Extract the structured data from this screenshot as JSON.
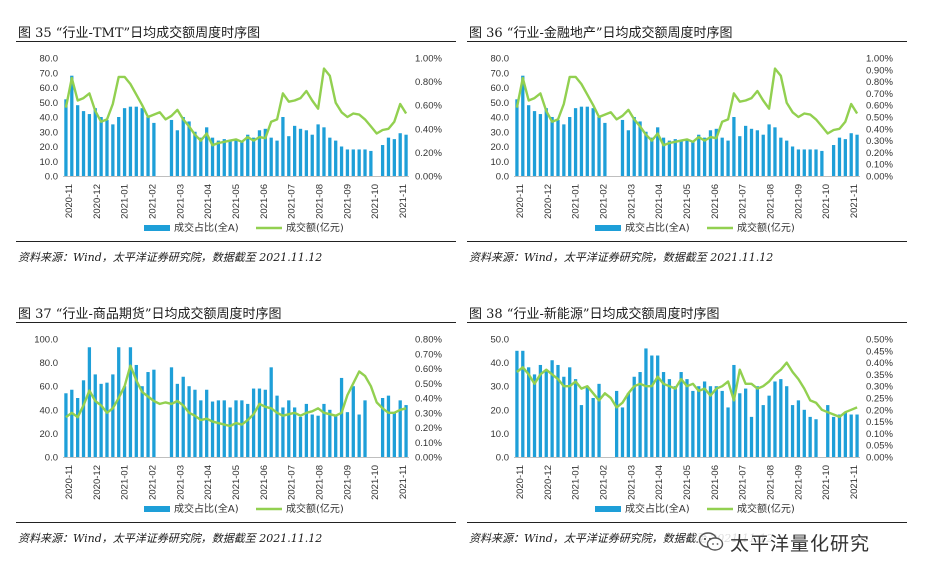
{
  "colors": {
    "bar": "#1e9fd8",
    "line": "#92d050",
    "text": "#333333"
  },
  "watermark": {
    "text": "太平洋量化研究",
    "icon": "wechat-icon"
  },
  "panels": [
    {
      "title": "图  35 “行业-TMT”日均成交额周度时序图",
      "source": "资料来源：Wind，太平洋证券研究院，数据截至 2021.11.12",
      "chart_data": {
        "type": "bar+line",
        "left_axis": {
          "min": 0,
          "max": 80,
          "ticks": [
            "0.0",
            "10.0",
            "20.0",
            "30.0",
            "40.0",
            "50.0",
            "60.0",
            "70.0",
            "80.0"
          ]
        },
        "right_axis": {
          "min": 0,
          "max": 1.0,
          "ticks": [
            "0.00%",
            "0.20%",
            "0.40%",
            "0.60%",
            "0.80%",
            "1.00%"
          ]
        },
        "x_labels": [
          "2020-11",
          "2020-12",
          "2021-01",
          "2021-02",
          "2021-03",
          "2021-04",
          "2021-05",
          "2021-06",
          "2021-07",
          "2021-08",
          "2021-09",
          "2021-10",
          "2021-11"
        ],
        "legend": [
          "成交占比(全A)",
          "成交额(亿元)"
        ],
        "series": [
          {
            "name": "成交占比(全A)",
            "kind": "bar",
            "axis": "left",
            "values": [
              52,
              68,
              48,
              44,
              42,
              46,
              40,
              38,
              35,
              40,
              46,
              47,
              47,
              46,
              40,
              36,
              null,
              null,
              38,
              31,
              40,
              37,
              30,
              26,
              33,
              26,
              24,
              25,
              24,
              25,
              23,
              28,
              26,
              31,
              32,
              26,
              24,
              40,
              27,
              34,
              32,
              31,
              28,
              35,
              33,
              26,
              24,
              20,
              18,
              18,
              18,
              18,
              17,
              null,
              21,
              26,
              25,
              29,
              28
            ]
          },
          {
            "name": "成交额(亿元)",
            "kind": "line",
            "axis": "right",
            "values": [
              0.58,
              0.83,
              0.64,
              0.66,
              0.7,
              0.55,
              0.46,
              0.48,
              0.61,
              0.84,
              0.84,
              0.78,
              0.69,
              0.6,
              0.5,
              0.52,
              0.54,
              0.48,
              0.51,
              0.56,
              0.48,
              0.42,
              0.35,
              0.3,
              0.36,
              0.26,
              0.28,
              0.29,
              0.3,
              0.31,
              0.29,
              0.33,
              0.3,
              0.33,
              0.32,
              0.46,
              0.48,
              0.7,
              0.63,
              0.64,
              0.66,
              0.72,
              0.64,
              0.57,
              0.91,
              0.85,
              0.62,
              0.54,
              0.5,
              0.53,
              0.52,
              0.48,
              0.42,
              0.36,
              0.39,
              0.4,
              0.46,
              0.61,
              0.53
            ]
          }
        ]
      }
    },
    {
      "title": "图  36 “行业-金融地产”日均成交额周度时序图",
      "source": "资料来源：Wind，太平洋证券研究院，数据截至 2021.11.12",
      "chart_data": {
        "type": "bar+line",
        "left_axis": {
          "min": 0,
          "max": 80,
          "ticks": [
            "0.0",
            "10.0",
            "20.0",
            "30.0",
            "40.0",
            "50.0",
            "60.0",
            "70.0",
            "80.0"
          ]
        },
        "right_axis": {
          "min": 0,
          "max": 1.0,
          "ticks": [
            "0.00%",
            "0.10%",
            "0.20%",
            "0.30%",
            "0.40%",
            "0.50%",
            "0.60%",
            "0.70%",
            "0.80%",
            "0.90%",
            "1.00%"
          ]
        },
        "x_labels": [
          "2020-11",
          "2020-12",
          "2021-01",
          "2021-02",
          "2021-03",
          "2021-04",
          "2021-05",
          "2021-06",
          "2021-07",
          "2021-08",
          "2021-09",
          "2021-10",
          "2021-11"
        ],
        "legend": [
          "成交占比(全A)",
          "成交额(亿元)"
        ],
        "series": [
          {
            "name": "成交占比(全A)",
            "kind": "bar",
            "axis": "left",
            "values": [
              52,
              68,
              48,
              44,
              42,
              46,
              40,
              38,
              35,
              40,
              46,
              47,
              47,
              46,
              40,
              36,
              null,
              null,
              38,
              31,
              40,
              37,
              30,
              26,
              33,
              26,
              24,
              25,
              24,
              25,
              23,
              28,
              26,
              31,
              32,
              26,
              24,
              40,
              27,
              34,
              32,
              31,
              28,
              35,
              33,
              26,
              24,
              20,
              18,
              18,
              18,
              18,
              17,
              null,
              21,
              26,
              25,
              29,
              28
            ]
          },
          {
            "name": "成交额(亿元)",
            "kind": "line",
            "axis": "right",
            "values": [
              0.58,
              0.83,
              0.64,
              0.66,
              0.7,
              0.55,
              0.46,
              0.48,
              0.61,
              0.84,
              0.84,
              0.78,
              0.69,
              0.6,
              0.5,
              0.52,
              0.54,
              0.48,
              0.51,
              0.56,
              0.48,
              0.42,
              0.35,
              0.3,
              0.36,
              0.26,
              0.28,
              0.29,
              0.3,
              0.31,
              0.29,
              0.33,
              0.3,
              0.33,
              0.32,
              0.46,
              0.48,
              0.7,
              0.63,
              0.64,
              0.66,
              0.72,
              0.64,
              0.57,
              0.91,
              0.85,
              0.62,
              0.54,
              0.5,
              0.53,
              0.52,
              0.48,
              0.42,
              0.36,
              0.39,
              0.4,
              0.46,
              0.61,
              0.53
            ]
          }
        ]
      }
    },
    {
      "title": "图  37 “行业-商品期货”日均成交额周度时序图",
      "source": "资料来源：Wind，太平洋证券研究院，数据截至 2021.11.12",
      "chart_data": {
        "type": "bar+line",
        "left_axis": {
          "min": 0,
          "max": 100,
          "ticks": [
            "0.0",
            "20.0",
            "40.0",
            "60.0",
            "80.0",
            "100.0"
          ]
        },
        "right_axis": {
          "min": 0,
          "max": 0.8,
          "ticks": [
            "0.00%",
            "0.10%",
            "0.20%",
            "0.30%",
            "0.40%",
            "0.50%",
            "0.60%",
            "0.70%",
            "0.80%"
          ]
        },
        "x_labels": [
          "2020-11",
          "2020-12",
          "2021-01",
          "2021-02",
          "2021-03",
          "2021-04",
          "2021-05",
          "2021-06",
          "2021-07",
          "2021-08",
          "2021-09",
          "2021-10",
          "2021-11"
        ],
        "legend": [
          "成交占比(全A)",
          "成交额(亿元)"
        ],
        "series": [
          {
            "name": "成交占比(全A)",
            "kind": "bar",
            "axis": "left",
            "values": [
              54,
              57,
              50,
              65,
              93,
              70,
              62,
              63,
              70,
              93,
              60,
              93,
              78,
              60,
              72,
              74,
              null,
              null,
              76,
              62,
              68,
              60,
              57,
              48,
              57,
              47,
              48,
              48,
              42,
              48,
              48,
              45,
              58,
              58,
              57,
              76,
              52,
              42,
              48,
              42,
              34,
              45,
              36,
              35,
              45,
              40,
              36,
              67,
              38,
              60,
              36,
              48,
              null,
              null,
              50,
              52,
              38,
              48,
              44
            ]
          },
          {
            "name": "成交额(亿元)",
            "kind": "line",
            "axis": "right",
            "values": [
              0.27,
              0.3,
              0.27,
              0.35,
              0.45,
              0.38,
              0.35,
              0.3,
              0.33,
              0.4,
              0.48,
              0.62,
              0.52,
              0.44,
              0.41,
              0.38,
              0.36,
              0.37,
              0.36,
              0.38,
              0.35,
              0.3,
              0.28,
              0.25,
              0.26,
              0.24,
              0.23,
              0.22,
              0.21,
              0.23,
              0.22,
              0.25,
              0.29,
              0.36,
              0.34,
              0.33,
              0.3,
              0.28,
              0.29,
              0.3,
              0.28,
              0.3,
              0.31,
              0.33,
              0.3,
              0.29,
              0.28,
              0.3,
              0.42,
              0.5,
              0.58,
              0.55,
              0.48,
              0.37,
              0.33,
              0.3,
              0.3,
              0.32,
              0.33
            ]
          }
        ]
      }
    },
    {
      "title": "图  38 “行业-新能源”日均成交额周度时序图",
      "source": "资料来源：Wind，太平洋证券研究院，数据截至 2021.11.12",
      "chart_data": {
        "type": "bar+line",
        "left_axis": {
          "min": 0,
          "max": 50,
          "ticks": [
            "0.0",
            "10.0",
            "20.0",
            "30.0",
            "40.0",
            "50.0"
          ]
        },
        "right_axis": {
          "min": 0,
          "max": 0.5,
          "ticks": [
            "0.00%",
            "0.05%",
            "0.10%",
            "0.15%",
            "0.20%",
            "0.25%",
            "0.30%",
            "0.35%",
            "0.40%",
            "0.45%",
            "0.50%"
          ]
        },
        "x_labels": [
          "2020-11",
          "2020-12",
          "2021-01",
          "2021-02",
          "2021-03",
          "2021-04",
          "2021-05",
          "2021-06",
          "2021-07",
          "2021-08",
          "2021-09",
          "2021-10",
          "2021-11"
        ],
        "legend": [
          "成交占比(全A)",
          "成交额(亿元)"
        ],
        "series": [
          {
            "name": "成交占比(全A)",
            "kind": "bar",
            "axis": "left",
            "values": [
              45,
              45,
              38,
              35,
              39,
              37,
              41,
              39,
              34,
              38,
              33,
              22,
              30,
              25,
              31,
              null,
              null,
              28,
              21,
              27,
              34,
              36,
              46,
              43,
              43,
              36,
              33,
              30,
              36,
              33,
              28,
              30,
              32,
              30,
              30,
              28,
              21,
              39,
              27,
              29,
              17,
              30,
              22,
              26,
              32,
              33,
              30,
              22,
              24,
              20,
              17,
              16,
              null,
              22,
              17,
              18,
              19,
              18,
              18
            ]
          },
          {
            "name": "成交额(亿元)",
            "kind": "line",
            "axis": "right",
            "values": [
              0.36,
              0.38,
              0.35,
              0.31,
              0.35,
              0.37,
              0.35,
              0.33,
              0.3,
              0.3,
              0.32,
              0.29,
              0.3,
              0.27,
              0.24,
              0.27,
              0.25,
              0.21,
              0.23,
              0.27,
              0.3,
              0.31,
              0.3,
              0.3,
              0.34,
              0.31,
              0.3,
              0.29,
              0.33,
              0.3,
              0.31,
              0.28,
              0.29,
              0.26,
              0.29,
              0.3,
              0.32,
              0.24,
              0.37,
              0.31,
              0.31,
              0.29,
              0.3,
              0.32,
              0.35,
              0.37,
              0.4,
              0.36,
              0.33,
              0.29,
              0.24,
              0.23,
              0.2,
              0.19,
              0.18,
              0.17,
              0.19,
              0.2,
              0.21
            ]
          }
        ]
      }
    }
  ]
}
